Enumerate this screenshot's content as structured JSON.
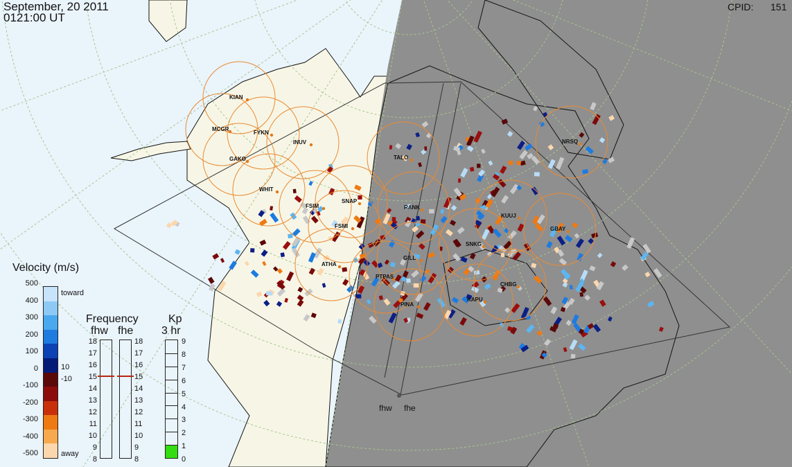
{
  "header": {
    "date": "September, 20 2011",
    "time": "0121:00 UT",
    "cpid_label": "CPID:",
    "cpid_value": "151"
  },
  "stations": [
    {
      "code": "KIAN"
    },
    {
      "code": "MCGR"
    },
    {
      "code": "FYKN"
    },
    {
      "code": "INUV"
    },
    {
      "code": "GAKO"
    },
    {
      "code": "WHIT"
    },
    {
      "code": "FSIM"
    },
    {
      "code": "SNAP"
    },
    {
      "code": "FSMI"
    },
    {
      "code": "ATHA"
    },
    {
      "code": "TALO"
    },
    {
      "code": "RANK"
    },
    {
      "code": "KUUJ"
    },
    {
      "code": "GBAY"
    },
    {
      "code": "SNKG"
    },
    {
      "code": "GILL"
    },
    {
      "code": "PTPAS"
    },
    {
      "code": "PINA"
    },
    {
      "code": "CHBG"
    },
    {
      "code": "KAPU"
    },
    {
      "code": "NRSQ"
    }
  ],
  "radars": {
    "west": "fhw",
    "east": "fhe"
  },
  "velocity_legend": {
    "title": "Velocity (m/s)",
    "toward": "toward",
    "away": "away",
    "zero_marks": [
      "10",
      "-10"
    ],
    "ticks": [
      "500",
      "400",
      "300",
      "200",
      "100",
      "0",
      "-100",
      "-200",
      "-300",
      "-400",
      "-500"
    ],
    "colors": [
      "#c7e4fb",
      "#8ccaf5",
      "#4aa9ee",
      "#1e7be0",
      "#0c42b4",
      "#061a78",
      "#5a0808",
      "#8c0c0c",
      "#c8300c",
      "#ee7a14",
      "#f7a94e",
      "#fcd7ad"
    ]
  },
  "frequency_panel": {
    "title": "Frequency",
    "columns": [
      "fhw",
      "fhe"
    ],
    "ticks": [
      "18",
      "17",
      "16",
      "15",
      "14",
      "13",
      "12",
      "11",
      "10",
      "9",
      "8"
    ],
    "fhw_mhz": 15,
    "fhe_mhz": 15
  },
  "kp_panel": {
    "title": "Kp",
    "subtitle": "3 hr",
    "ticks": [
      "9",
      "8",
      "7",
      "6",
      "5",
      "4",
      "3",
      "2",
      "1",
      "0"
    ],
    "value": 1,
    "fill_color": "#33dd11"
  },
  "colors": {
    "ocean": "#eaf4fb",
    "land_day": "#f7f6e6",
    "night": "#8f8f8f",
    "fov_circle": "#ea8a33",
    "grid_line": "#a7c58f"
  }
}
